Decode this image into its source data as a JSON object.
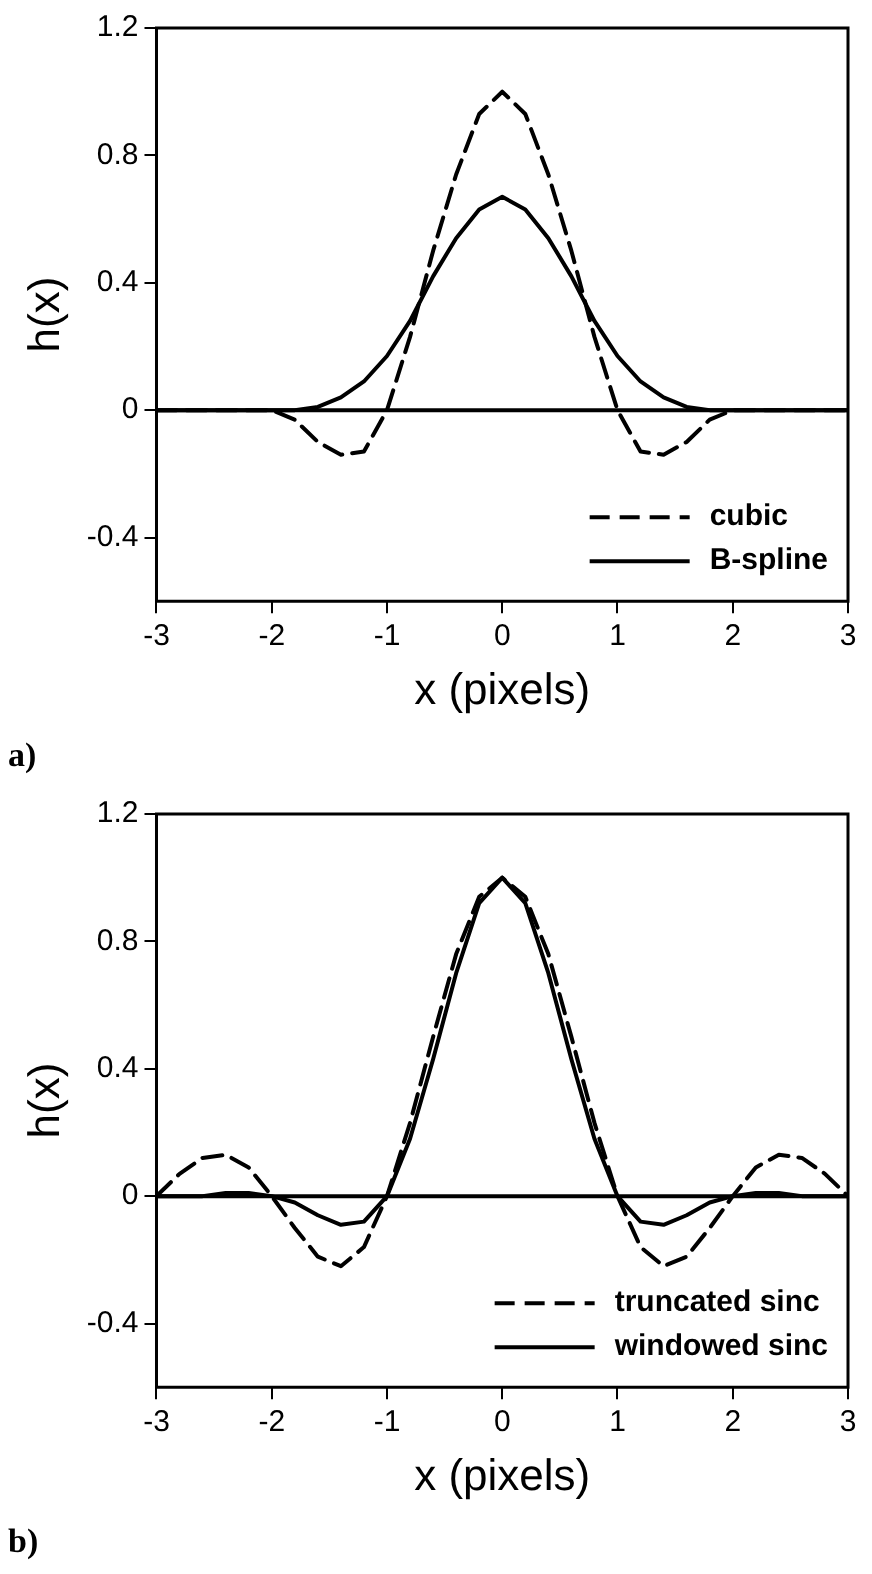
{
  "chart_data": [
    {
      "type": "line",
      "xlabel": "x (pixels)",
      "ylabel": "h(x)",
      "xlim": [
        -3,
        3
      ],
      "xticks": [
        -3,
        -2,
        -1,
        0,
        1,
        2,
        3
      ],
      "ylim": [
        -0.6,
        1.2
      ],
      "yticks": [
        -0.4,
        0,
        0.4,
        0.8,
        1.2
      ],
      "legend": "bottom right",
      "annotations": [
        "a)"
      ],
      "ref_lines": [
        {
          "axis": "y",
          "value": 0,
          "color": "#000000"
        }
      ],
      "x": [
        -3,
        -2.8,
        -2.6,
        -2.4,
        -2.2,
        -2,
        -1.8,
        -1.6,
        -1.4,
        -1.2,
        -1,
        -0.8,
        -0.6,
        -0.4,
        -0.2,
        0,
        0.2,
        0.4,
        0.6,
        0.8,
        1,
        1.2,
        1.4,
        1.6,
        1.8,
        2,
        2.2,
        2.4,
        2.6,
        2.8,
        3
      ],
      "series": [
        {
          "name": "cubic",
          "color": "#000000",
          "line_style": "dashed",
          "values": [
            0,
            0,
            0,
            0,
            0,
            0,
            -0.03,
            -0.1,
            -0.14,
            -0.13,
            0,
            0.23,
            0.5,
            0.74,
            0.93,
            1,
            0.93,
            0.74,
            0.5,
            0.23,
            0,
            -0.13,
            -0.14,
            -0.1,
            -0.03,
            0,
            0,
            0,
            0,
            0,
            0
          ]
        },
        {
          "name": "B-spline",
          "color": "#000000",
          "line_style": "solid",
          "values": [
            0,
            0,
            0,
            0,
            0,
            0,
            0,
            0.01,
            0.04,
            0.09,
            0.17,
            0.28,
            0.42,
            0.54,
            0.63,
            0.67,
            0.63,
            0.54,
            0.42,
            0.28,
            0.17,
            0.09,
            0.04,
            0.01,
            0,
            0,
            0,
            0,
            0,
            0,
            0
          ]
        }
      ]
    },
    {
      "type": "line",
      "xlabel": "x (pixels)",
      "ylabel": "h(x)",
      "xlim": [
        -3,
        3
      ],
      "xticks": [
        -3,
        -2,
        -1,
        0,
        1,
        2,
        3
      ],
      "ylim": [
        -0.6,
        1.2
      ],
      "yticks": [
        -0.4,
        0,
        0.4,
        0.8,
        1.2
      ],
      "legend": "bottom right",
      "annotations": [
        "b)"
      ],
      "ref_lines": [
        {
          "axis": "y",
          "value": 0,
          "color": "#000000"
        }
      ],
      "x": [
        -3,
        -2.8,
        -2.6,
        -2.4,
        -2.2,
        -2,
        -1.8,
        -1.6,
        -1.4,
        -1.2,
        -1,
        -0.8,
        -0.6,
        -0.4,
        -0.2,
        0,
        0.2,
        0.4,
        0.6,
        0.8,
        1,
        1.2,
        1.4,
        1.6,
        1.8,
        2,
        2.2,
        2.4,
        2.6,
        2.8,
        3
      ],
      "series": [
        {
          "name": "truncated sinc",
          "color": "#000000",
          "line_style": "dashed",
          "values": [
            0,
            0.07,
            0.12,
            0.13,
            0.09,
            0,
            -0.1,
            -0.19,
            -0.22,
            -0.16,
            0,
            0.23,
            0.5,
            0.76,
            0.94,
            1,
            0.94,
            0.76,
            0.5,
            0.23,
            0,
            -0.16,
            -0.22,
            -0.19,
            -0.1,
            0,
            0.09,
            0.13,
            0.12,
            0.07,
            0
          ]
        },
        {
          "name": "windowed sinc",
          "color": "#000000",
          "line_style": "solid",
          "values": [
            0,
            0,
            0,
            0.01,
            0.01,
            0,
            -0.02,
            -0.06,
            -0.09,
            -0.08,
            0,
            0.18,
            0.43,
            0.7,
            0.92,
            1,
            0.92,
            0.7,
            0.43,
            0.18,
            0,
            -0.08,
            -0.09,
            -0.06,
            -0.02,
            0,
            0.01,
            0.01,
            0,
            0,
            0
          ]
        }
      ]
    }
  ]
}
